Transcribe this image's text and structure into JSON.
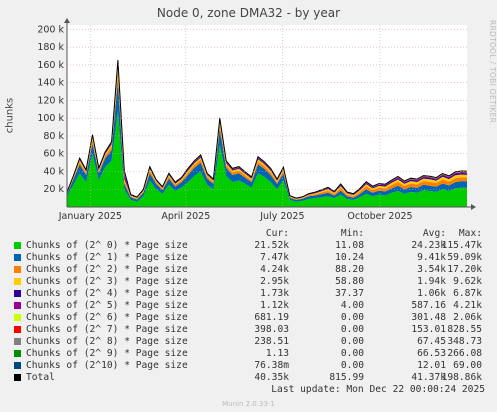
{
  "title": "Node 0, zone DMA32 - by year",
  "side_text": "RRDTOOL / TOBI OETIKER",
  "footer": "Munin 2.0.33-1",
  "last_update": "Last update:  Mon Dec 22 00:00:24 2025",
  "legend_headers": {
    "cur": "Cur:",
    "min": "Min:",
    "avg": "Avg:",
    "max": "Max:"
  },
  "legend": [
    {
      "label": "Chunks of (2^ 0) * Page size",
      "color": "#00cc00",
      "cur": "21.52k",
      "min": "11.08",
      "avg": "24.23k",
      "max": "115.47k"
    },
    {
      "label": "Chunks of (2^ 1) * Page size",
      "color": "#0066b3",
      "cur": "7.47k",
      "min": "10.24",
      "avg": "9.41k",
      "max": "59.09k"
    },
    {
      "label": "Chunks of (2^ 2) * Page size",
      "color": "#ff8000",
      "cur": "4.24k",
      "min": "88.20",
      "avg": "3.54k",
      "max": "17.20k"
    },
    {
      "label": "Chunks of (2^ 3) * Page size",
      "color": "#ffcc00",
      "cur": "2.95k",
      "min": "58.80",
      "avg": "1.94k",
      "max": "9.62k"
    },
    {
      "label": "Chunks of (2^ 4) * Page size",
      "color": "#330099",
      "cur": "1.73k",
      "min": "37.37",
      "avg": "1.06k",
      "max": "6.87k"
    },
    {
      "label": "Chunks of (2^ 5) * Page size",
      "color": "#990099",
      "cur": "1.12k",
      "min": "4.00",
      "avg": "587.16",
      "max": "4.21k"
    },
    {
      "label": "Chunks of (2^ 6) * Page size",
      "color": "#ccff00",
      "cur": "681.19",
      "min": "0.00",
      "avg": "301.48",
      "max": "2.06k"
    },
    {
      "label": "Chunks of (2^ 7) * Page size",
      "color": "#ff0000",
      "cur": "398.03",
      "min": "0.00",
      "avg": "153.01",
      "max": "828.55"
    },
    {
      "label": "Chunks of (2^ 8) * Page size",
      "color": "#808080",
      "cur": "238.51",
      "min": "0.00",
      "avg": "67.45",
      "max": "348.73"
    },
    {
      "label": "Chunks of (2^ 9) * Page size",
      "color": "#008f00",
      "cur": "1.13",
      "min": "0.00",
      "avg": "66.53",
      "max": "266.08"
    },
    {
      "label": "Chunks of (2^10) * Page size",
      "color": "#00487d",
      "cur": "76.38m",
      "min": "0.00",
      "avg": "12.01",
      "max": "69.00"
    },
    {
      "label": "Total",
      "color": "#000000",
      "cur": "40.35k",
      "min": "815.99",
      "avg": "41.37k",
      "max": "198.86k"
    }
  ],
  "chart_data": {
    "type": "area",
    "title": "Node 0, zone DMA32 - by year",
    "ylabel": "chunks",
    "ylim": [
      0,
      205000
    ],
    "yticks": [
      20000,
      40000,
      60000,
      80000,
      100000,
      120000,
      140000,
      160000,
      180000,
      200000
    ],
    "ytick_labels": [
      "20 k",
      "40 k",
      "60 k",
      "80 k",
      "100 k",
      "120 k",
      "140 k",
      "160 k",
      "180 k",
      "200 k"
    ],
    "xlim": [
      "2024-12-10",
      "2025-12-22"
    ],
    "xticks": [
      "January 2025",
      "April 2025",
      "July 2025",
      "October 2025"
    ],
    "xtick_dates": [
      "2025-01-01",
      "2025-04-01",
      "2025-07-01",
      "2025-10-01"
    ],
    "grid": true,
    "stacked": true,
    "x": [
      "2024-12-10",
      "2024-12-16",
      "2024-12-22",
      "2024-12-28",
      "2025-01-03",
      "2025-01-09",
      "2025-01-15",
      "2025-01-21",
      "2025-01-27",
      "2025-02-02",
      "2025-02-08",
      "2025-02-14",
      "2025-02-20",
      "2025-02-26",
      "2025-03-04",
      "2025-03-10",
      "2025-03-16",
      "2025-03-22",
      "2025-03-28",
      "2025-04-03",
      "2025-04-09",
      "2025-04-15",
      "2025-04-21",
      "2025-04-27",
      "2025-05-03",
      "2025-05-09",
      "2025-05-15",
      "2025-05-21",
      "2025-05-27",
      "2025-06-02",
      "2025-06-08",
      "2025-06-14",
      "2025-06-20",
      "2025-06-26",
      "2025-07-02",
      "2025-07-08",
      "2025-07-14",
      "2025-07-20",
      "2025-07-26",
      "2025-08-01",
      "2025-08-07",
      "2025-08-13",
      "2025-08-19",
      "2025-08-25",
      "2025-08-31",
      "2025-09-06",
      "2025-09-12",
      "2025-09-18",
      "2025-09-24",
      "2025-09-30",
      "2025-10-06",
      "2025-10-12",
      "2025-10-18",
      "2025-10-24",
      "2025-10-30",
      "2025-11-05",
      "2025-11-11",
      "2025-11-17",
      "2025-11-23",
      "2025-11-29",
      "2025-12-05",
      "2025-12-11",
      "2025-12-17",
      "2025-12-22"
    ],
    "series": [
      {
        "name": "Chunks of (2^ 0) * Page size",
        "color": "#00cc00",
        "values": [
          12000,
          25000,
          38000,
          28000,
          60000,
          30000,
          45000,
          52000,
          108000,
          20000,
          8000,
          6000,
          12000,
          30000,
          20000,
          15000,
          25000,
          18000,
          22000,
          28000,
          35000,
          40000,
          25000,
          20000,
          70000,
          35000,
          28000,
          30000,
          26000,
          22000,
          38000,
          34000,
          28000,
          20000,
          30000,
          8000,
          6000,
          7000,
          9000,
          10000,
          11000,
          12000,
          10000,
          14000,
          9000,
          8000,
          11000,
          15000,
          12000,
          14000,
          13000,
          16000,
          18000,
          15000,
          17000,
          16000,
          19000,
          18000,
          17000,
          20000,
          18000,
          21000,
          22000,
          21520
        ]
      },
      {
        "name": "Chunks of (2^ 1) * Page size",
        "color": "#0066b3",
        "values": [
          3000,
          6000,
          10000,
          8000,
          12000,
          8000,
          10000,
          12000,
          35000,
          6000,
          3000,
          2500,
          4000,
          8000,
          6000,
          4000,
          7000,
          5000,
          6000,
          8000,
          9000,
          10000,
          7000,
          6000,
          18000,
          9000,
          8000,
          8000,
          7000,
          6000,
          10000,
          9000,
          8000,
          6000,
          8000,
          2500,
          2000,
          2200,
          3000,
          3000,
          3500,
          4000,
          3000,
          4500,
          3000,
          2500,
          3500,
          5000,
          4000,
          4500,
          4500,
          5000,
          6000,
          5000,
          5500,
          5500,
          6000,
          6000,
          5800,
          6500,
          6200,
          7000,
          7200,
          7470
        ]
      },
      {
        "name": "Chunks of (2^ 2) * Page size",
        "color": "#ff8000",
        "values": [
          800,
          1800,
          3000,
          2500,
          4000,
          2500,
          3000,
          4000,
          9000,
          3000,
          1200,
          1000,
          1500,
          3000,
          2000,
          1500,
          2500,
          2000,
          2200,
          3000,
          3200,
          3500,
          2500,
          2200,
          5000,
          3200,
          3000,
          3000,
          2600,
          2300,
          3500,
          3200,
          3000,
          2200,
          2800,
          900,
          800,
          900,
          1200,
          1500,
          2000,
          2500,
          1800,
          3000,
          2000,
          1800,
          2500,
          3500,
          3000,
          3200,
          3300,
          3800,
          4200,
          3800,
          4000,
          4000,
          4200,
          4300,
          4100,
          4500,
          4300,
          4600,
          4400,
          4240
        ]
      },
      {
        "name": "Chunks of (2^ 3) * Page size",
        "color": "#ffcc00",
        "values": [
          500,
          1000,
          1800,
          1500,
          2500,
          1500,
          1800,
          2500,
          6000,
          2500,
          800,
          700,
          1000,
          2000,
          1300,
          1000,
          1600,
          1300,
          1400,
          2000,
          2100,
          2300,
          1600,
          1400,
          3200,
          2100,
          2000,
          2000,
          1700,
          1500,
          2300,
          2100,
          2000,
          1400,
          1800,
          600,
          500,
          600,
          800,
          1000,
          1300,
          1700,
          1200,
          2000,
          1300,
          1200,
          1700,
          2300,
          2000,
          2100,
          2200,
          2500,
          2800,
          2500,
          2700,
          2700,
          2800,
          2900,
          2800,
          3000,
          2900,
          3100,
          3000,
          2950
        ]
      },
      {
        "name": "Chunks of (2^ 4) * Page size",
        "color": "#330099",
        "values": [
          300,
          600,
          1000,
          800,
          1300,
          800,
          1000,
          1300,
          3500,
          3000,
          500,
          400,
          600,
          1100,
          700,
          600,
          900,
          700,
          800,
          1100,
          1200,
          1300,
          900,
          800,
          1800,
          1200,
          1100,
          1100,
          1000,
          900,
          1300,
          1200,
          1100,
          800,
          1000,
          350,
          300,
          350,
          450,
          550,
          700,
          900,
          650,
          1100,
          700,
          650,
          900,
          1200,
          1100,
          1150,
          1200,
          1350,
          1500,
          1350,
          1450,
          1450,
          1500,
          1550,
          1500,
          1650,
          1600,
          1700,
          1750,
          1730
        ]
      },
      {
        "name": "Chunks of (2^ 5) * Page size",
        "color": "#990099",
        "values": [
          200,
          400,
          650,
          500,
          800,
          500,
          650,
          800,
          2000,
          3800,
          300,
          250,
          400,
          700,
          450,
          400,
          550,
          450,
          500,
          700,
          750,
          800,
          550,
          500,
          1100,
          750,
          700,
          700,
          600,
          550,
          800,
          750,
          700,
          500,
          600,
          220,
          200,
          220,
          300,
          350,
          450,
          550,
          400,
          700,
          450,
          400,
          550,
          750,
          700,
          720,
          750,
          850,
          950,
          850,
          900,
          900,
          950,
          1000,
          950,
          1050,
          1000,
          1080,
          1100,
          1120
        ]
      },
      {
        "name": "Chunks of (2^ 6) * Page size",
        "color": "#ccff00",
        "values": [
          100,
          200,
          350,
          250,
          400,
          250,
          330,
          400,
          1000,
          1500,
          150,
          130,
          200,
          350,
          230,
          200,
          280,
          230,
          250,
          350,
          380,
          400,
          280,
          250,
          550,
          380,
          350,
          350,
          300,
          280,
          400,
          380,
          350,
          250,
          300,
          110,
          100,
          110,
          150,
          180,
          230,
          280,
          200,
          350,
          230,
          200,
          280,
          380,
          350,
          360,
          380,
          430,
          480,
          430,
          450,
          450,
          480,
          500,
          480,
          530,
          500,
          560,
          600,
          681
        ]
      },
      {
        "name": "Chunks of (2^ 7) * Page size",
        "color": "#ff0000",
        "values": [
          50,
          100,
          170,
          130,
          200,
          130,
          160,
          200,
          500,
          600,
          80,
          70,
          100,
          170,
          120,
          100,
          140,
          120,
          130,
          170,
          190,
          200,
          140,
          130,
          280,
          190,
          170,
          170,
          150,
          140,
          200,
          190,
          170,
          130,
          150,
          55,
          50,
          55,
          75,
          90,
          110,
          140,
          100,
          170,
          110,
          100,
          140,
          190,
          170,
          180,
          190,
          210,
          240,
          210,
          230,
          230,
          240,
          250,
          240,
          270,
          260,
          290,
          320,
          398
        ]
      },
      {
        "name": "Chunks of (2^ 8) * Page size",
        "color": "#808080",
        "values": [
          20,
          45,
          75,
          55,
          90,
          55,
          70,
          90,
          220,
          300,
          35,
          30,
          45,
          75,
          50,
          45,
          60,
          50,
          55,
          75,
          85,
          90,
          60,
          55,
          120,
          85,
          75,
          75,
          65,
          60,
          90,
          85,
          75,
          55,
          65,
          25,
          20,
          25,
          35,
          40,
          50,
          60,
          45,
          75,
          50,
          45,
          60,
          85,
          75,
          80,
          85,
          95,
          105,
          95,
          100,
          100,
          105,
          110,
          105,
          120,
          115,
          130,
          150,
          238
        ]
      },
      {
        "name": "Chunks of (2^ 9) * Page size",
        "color": "#008f00",
        "values": [
          15,
          40,
          70,
          50,
          80,
          50,
          65,
          80,
          200,
          250,
          30,
          25,
          40,
          70,
          45,
          40,
          55,
          45,
          50,
          70,
          75,
          80,
          55,
          50,
          110,
          75,
          70,
          70,
          60,
          55,
          80,
          75,
          70,
          50,
          60,
          20,
          15,
          20,
          30,
          35,
          45,
          55,
          40,
          70,
          45,
          40,
          55,
          75,
          70,
          72,
          75,
          85,
          95,
          85,
          90,
          90,
          95,
          100,
          95,
          105,
          100,
          60,
          20,
          1.13
        ]
      },
      {
        "name": "Chunks of (2^10) * Page size",
        "color": "#00487d",
        "values": [
          5,
          10,
          15,
          12,
          18,
          12,
          15,
          18,
          50,
          60,
          8,
          6,
          10,
          15,
          10,
          8,
          12,
          10,
          11,
          15,
          16,
          18,
          12,
          11,
          25,
          16,
          15,
          15,
          13,
          12,
          18,
          16,
          15,
          11,
          13,
          4,
          3,
          4,
          6,
          7,
          9,
          11,
          8,
          14,
          9,
          8,
          11,
          15,
          14,
          14,
          15,
          17,
          19,
          17,
          18,
          18,
          19,
          20,
          19,
          21,
          20,
          10,
          2,
          0.076
        ]
      }
    ]
  }
}
